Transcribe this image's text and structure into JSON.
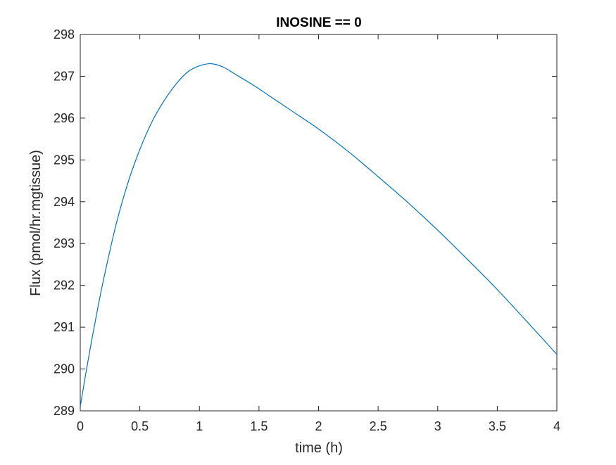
{
  "chart_data": {
    "type": "line",
    "title": "INOSINE == 0",
    "xlabel": "time (h)",
    "ylabel": "Flux (pmol/hr.mgtissue)",
    "xlim": [
      0,
      4
    ],
    "ylim": [
      289,
      298
    ],
    "x_ticks": [
      0,
      0.5,
      1,
      1.5,
      2,
      2.5,
      3,
      3.5,
      4
    ],
    "x_tick_labels": [
      "0",
      "0.5",
      "1",
      "1.5",
      "2",
      "2.5",
      "3",
      "3.5",
      "4"
    ],
    "y_ticks": [
      289,
      290,
      291,
      292,
      293,
      294,
      295,
      296,
      297,
      298
    ],
    "y_tick_labels": [
      "289",
      "290",
      "291",
      "292",
      "293",
      "294",
      "295",
      "296",
      "297",
      "298"
    ],
    "grid": false,
    "legend": "none",
    "series": [
      {
        "color": "#0072BD",
        "x": [
          0,
          0.05,
          0.1,
          0.15,
          0.2,
          0.3,
          0.4,
          0.5,
          0.6,
          0.7,
          0.8,
          0.9,
          1.0,
          1.1,
          1.2,
          1.3,
          1.4,
          1.5,
          1.75,
          2.0,
          2.25,
          2.5,
          2.75,
          3.0,
          3.25,
          3.5,
          3.75,
          4.0
        ],
        "y": [
          289.1,
          289.95,
          290.75,
          291.5,
          292.2,
          293.45,
          294.45,
          295.25,
          295.9,
          296.4,
          296.8,
          297.1,
          297.25,
          297.3,
          297.22,
          297.05,
          296.88,
          296.7,
          296.22,
          295.74,
          295.2,
          294.6,
          293.98,
          293.32,
          292.62,
          291.9,
          291.13,
          290.35
        ]
      }
    ]
  },
  "colors": {
    "axes": "#262626",
    "line": "#0072BD",
    "background": "#ffffff"
  }
}
